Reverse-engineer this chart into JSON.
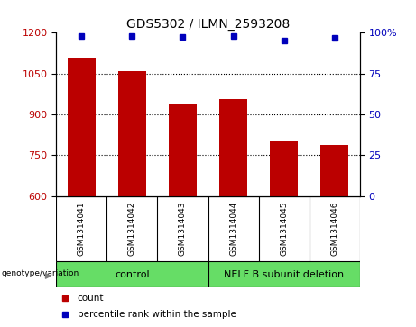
{
  "title": "GDS5302 / ILMN_2593208",
  "categories": [
    "GSM1314041",
    "GSM1314042",
    "GSM1314043",
    "GSM1314044",
    "GSM1314045",
    "GSM1314046"
  ],
  "counts": [
    1110,
    1058,
    940,
    955,
    800,
    788
  ],
  "percentiles": [
    98,
    98,
    97.5,
    98,
    95,
    97
  ],
  "ylim_left": [
    600,
    1200
  ],
  "ylim_right": [
    0,
    100
  ],
  "yticks_left": [
    600,
    750,
    900,
    1050,
    1200
  ],
  "yticks_right": [
    0,
    25,
    50,
    75,
    100
  ],
  "bar_color": "#bb0000",
  "dot_color": "#0000bb",
  "grid_color": "#000000",
  "bg_color": "#c8c8c8",
  "group1_label": "control",
  "group2_label": "NELF B subunit deletion",
  "group1_bg": "#66dd66",
  "group2_bg": "#66dd66",
  "legend_count_label": "count",
  "legend_pct_label": "percentile rank within the sample",
  "genotype_label": "genotype/variation"
}
